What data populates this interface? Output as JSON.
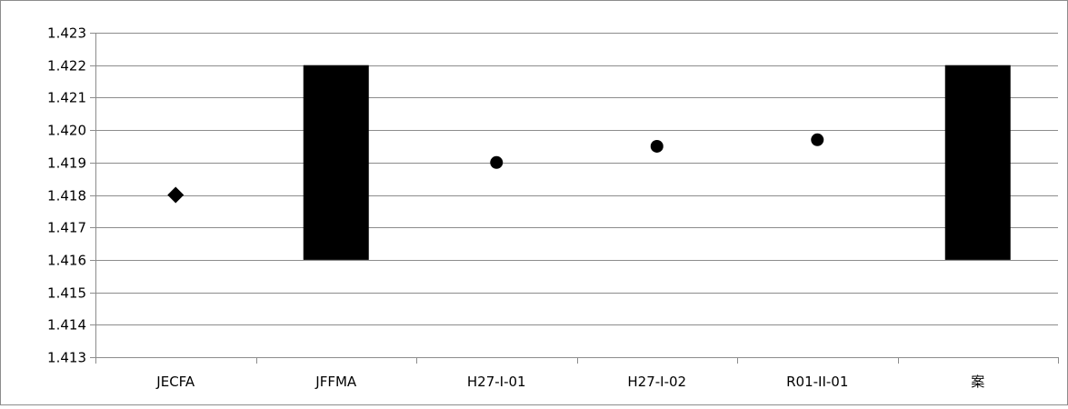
{
  "chart_data": {
    "type": "bar",
    "categories": [
      "JECFA",
      "JFFMA",
      "H27-I-01",
      "H27-I-02",
      "R01-II-01",
      "案"
    ],
    "ylim": [
      1.413,
      1.423
    ],
    "ytick_step": 0.001,
    "yticks": [
      "1.413",
      "1.414",
      "1.415",
      "1.416",
      "1.417",
      "1.418",
      "1.419",
      "1.420",
      "1.421",
      "1.422",
      "1.423"
    ],
    "grid": true,
    "ranges": [
      {
        "category": "JFFMA",
        "low": 1.416,
        "high": 1.422
      },
      {
        "category": "案",
        "low": 1.416,
        "high": 1.422
      }
    ],
    "points": [
      {
        "category": "JECFA",
        "value": 1.418,
        "marker": "diamond"
      },
      {
        "category": "H27-I-01",
        "value": 1.419,
        "marker": "circle"
      },
      {
        "category": "H27-I-02",
        "value": 1.4195,
        "marker": "circle"
      },
      {
        "category": "R01-II-01",
        "value": 1.4197,
        "marker": "circle"
      }
    ],
    "colors": {
      "bar": "#000000",
      "marker": "#000000",
      "grid": "#8c8c8c",
      "axis": "#8c8c8c"
    }
  }
}
